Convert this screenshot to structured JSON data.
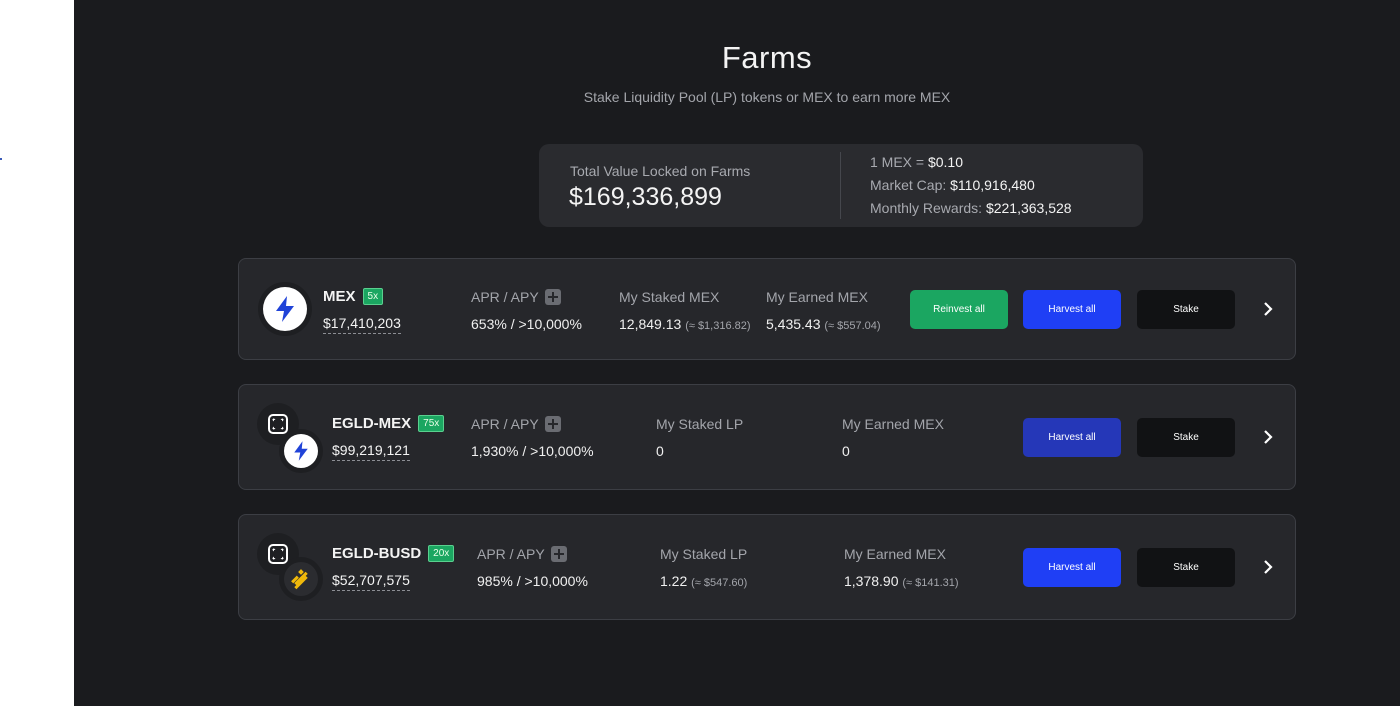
{
  "page": {
    "title": "Farms",
    "subtitle": "Stake Liquidity Pool (LP) tokens or MEX to earn more MEX"
  },
  "stats": {
    "tvl_label": "Total Value Locked on Farms",
    "tvl_value": "$169,336,899",
    "price_label": "1 MEX = ",
    "price_value": "$0.10",
    "mcap_label": "Market Cap: ",
    "mcap_value": "$110,916,480",
    "rewards_label": "Monthly Rewards: ",
    "rewards_value": "$221,363,528"
  },
  "farms": [
    {
      "name": "MEX",
      "multiplier": "5x",
      "tvl": "$17,410,203",
      "apr_label": "APR / APY",
      "apr_value": "653% / >10,000%",
      "staked_label": "My Staked MEX",
      "staked_value": "12,849.13",
      "staked_usd": "(≈ $1,316.82)",
      "earned_label": "My Earned MEX",
      "earned_value": "5,435.43",
      "earned_usd": "(≈ $557.04)",
      "reinvest_label": "Reinvest all",
      "harvest_label": "Harvest all",
      "stake_label": "Stake",
      "icons": [
        "mex-icon"
      ]
    },
    {
      "name": "EGLD-MEX",
      "multiplier": "75x",
      "tvl": "$99,219,121",
      "apr_label": "APR / APY",
      "apr_value": "1,930% / >10,000%",
      "staked_label": "My Staked LP",
      "staked_value": "0",
      "earned_label": "My Earned MEX",
      "earned_value": "0",
      "harvest_label": "Harvest all",
      "stake_label": "Stake",
      "icons": [
        "egld-icon",
        "mex-icon"
      ]
    },
    {
      "name": "EGLD-BUSD",
      "multiplier": "20x",
      "tvl": "$52,707,575",
      "apr_label": "APR / APY",
      "apr_value": "985% / >10,000%",
      "staked_label": "My Staked LP",
      "staked_value": "1.22",
      "staked_usd": "(≈ $547.60)",
      "earned_label": "My Earned MEX",
      "earned_value": "1,378.90",
      "earned_usd": "(≈ $141.31)",
      "harvest_label": "Harvest all",
      "stake_label": "Stake",
      "icons": [
        "egld-icon",
        "busd-icon"
      ]
    }
  ],
  "colors": {
    "background": "#1a1b1e",
    "card": "#26272b",
    "green": "#1ba661",
    "blue": "#1f3ff5",
    "dim_blue": "#2537b8",
    "busd_yellow": "#f0b90b"
  }
}
